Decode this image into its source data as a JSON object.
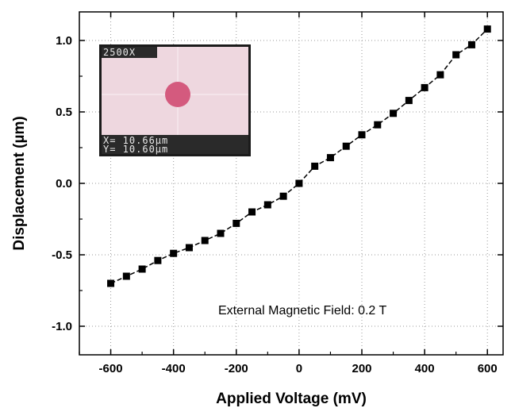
{
  "chart_data": {
    "type": "line",
    "xlabel": "Applied Voltage (mV)",
    "ylabel": "Displacement (µm)",
    "xlim": [
      -700,
      650
    ],
    "ylim": [
      -1.2,
      1.2
    ],
    "x_ticks": [
      -600,
      -400,
      -200,
      0,
      200,
      400,
      600
    ],
    "y_ticks": [
      -1.0,
      -0.5,
      0.0,
      0.5,
      1.0
    ],
    "x_tick_labels": [
      "-600",
      "-400",
      "-200",
      "0",
      "200",
      "400",
      "600"
    ],
    "y_tick_labels": [
      "-1.0",
      "-0.5",
      "0.0",
      "0.5",
      "1.0"
    ],
    "grid": true,
    "marker": "square",
    "line_style": "dashed",
    "color": "#000000",
    "series": [
      {
        "x": [
          -600,
          -550,
          -500,
          -450,
          -400,
          -350,
          -300,
          -250,
          -200,
          -150,
          -100,
          -50,
          0,
          50,
          100,
          150,
          200,
          250,
          300,
          350,
          400,
          450,
          500,
          550,
          600
        ],
        "values": [
          -0.7,
          -0.65,
          -0.6,
          -0.54,
          -0.49,
          -0.45,
          -0.4,
          -0.35,
          -0.28,
          -0.2,
          -0.15,
          -0.09,
          0.0,
          0.12,
          0.18,
          0.26,
          0.34,
          0.41,
          0.49,
          0.58,
          0.67,
          0.76,
          0.9,
          0.97,
          1.08
        ]
      }
    ],
    "annotations": [
      "External Magnetic Field: 0.2 T"
    ],
    "inset": {
      "magnification": "2500X",
      "x_readout": "X=  10.66µm",
      "y_readout": "Y=  10.60µm",
      "background_color": "#eed7df",
      "dot_color": "#d45a7e"
    }
  }
}
